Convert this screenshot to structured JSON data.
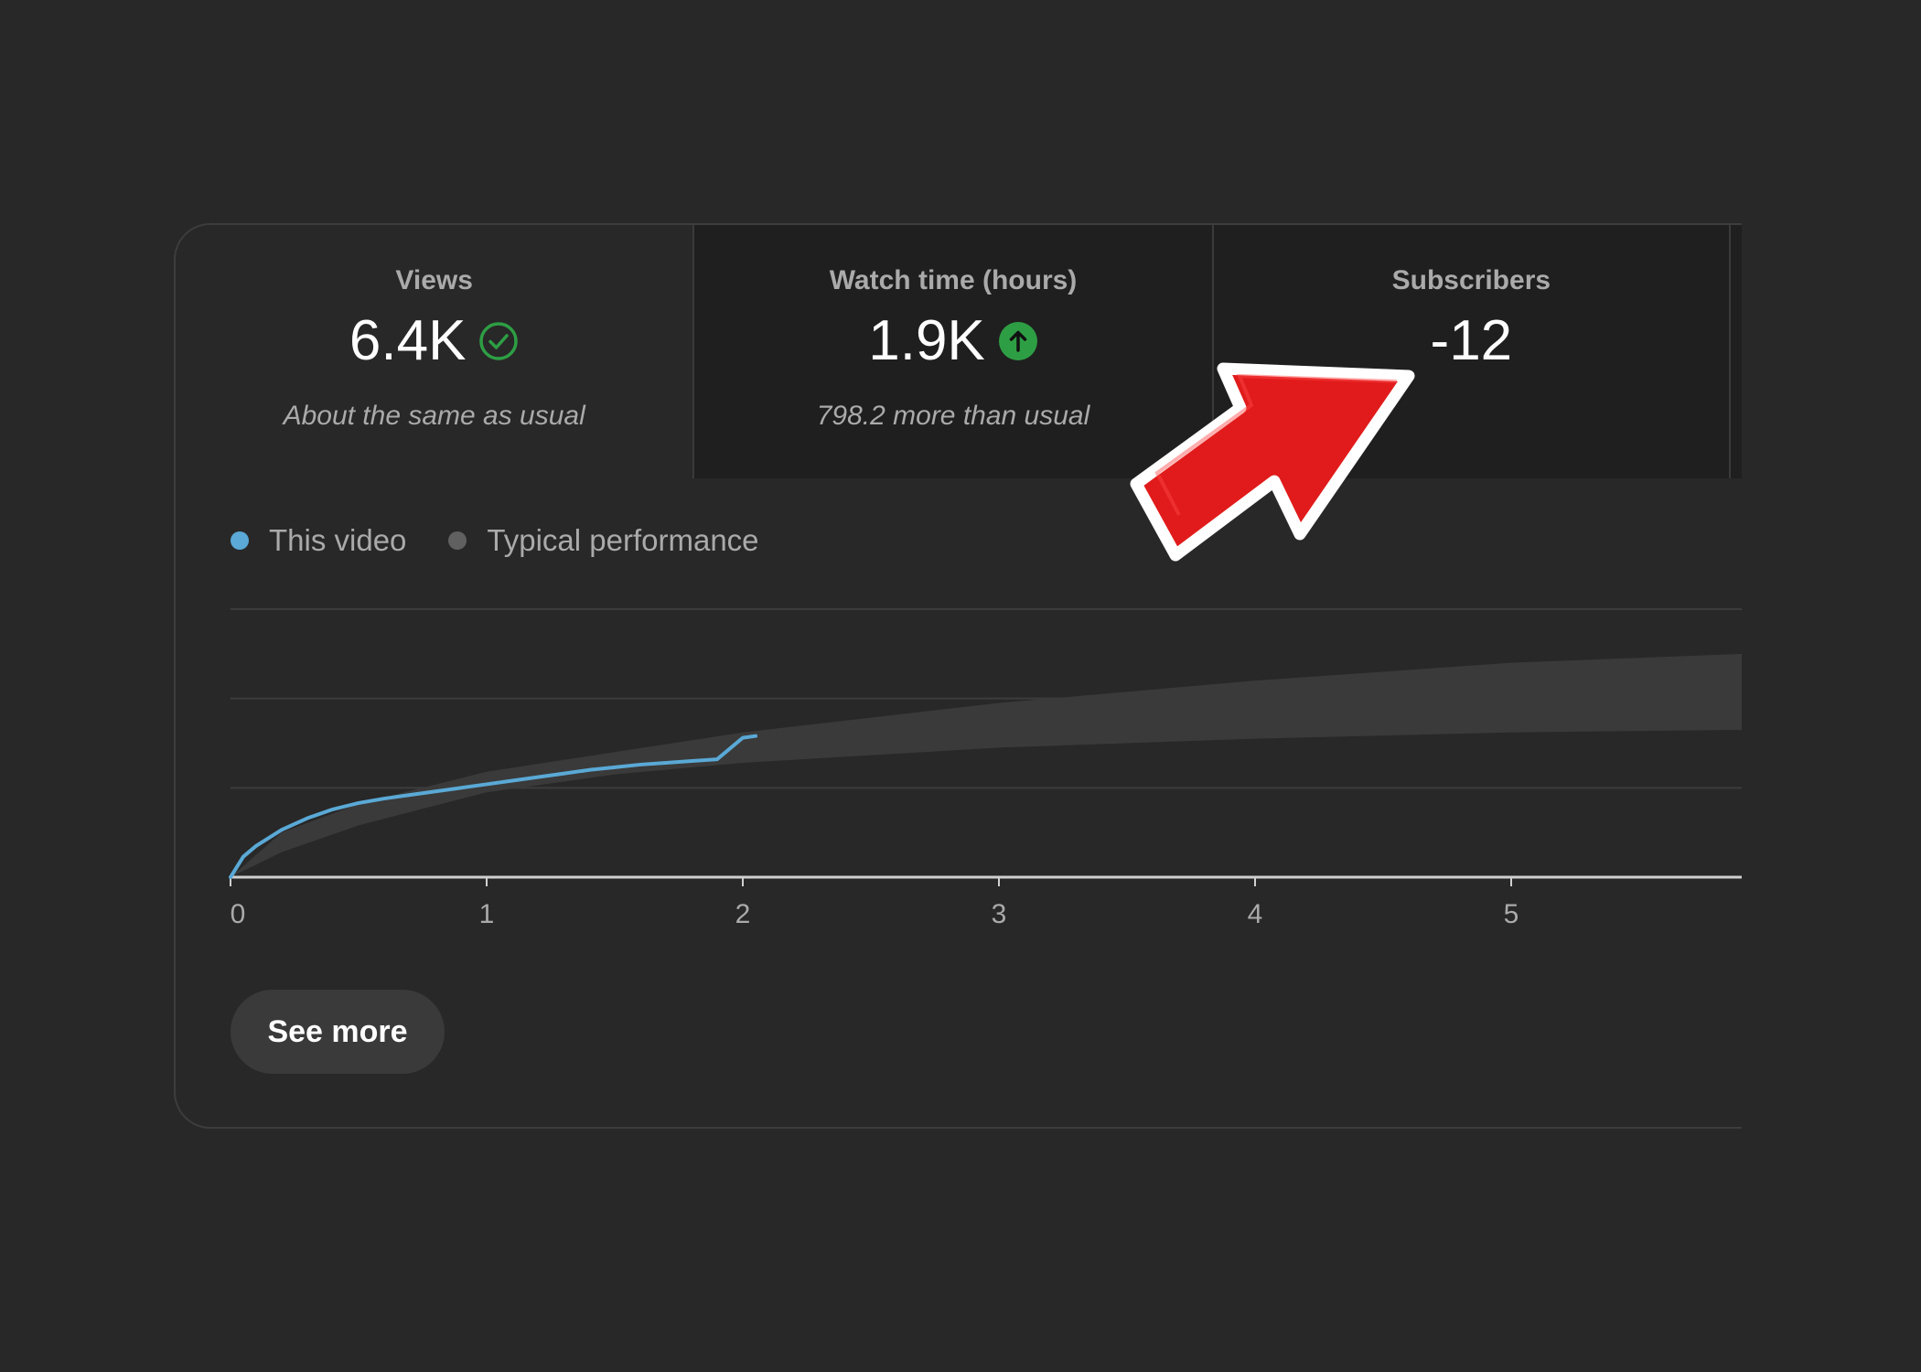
{
  "tabs": [
    {
      "title": "Views",
      "value": "6.4K",
      "note": "About the same as usual",
      "icon": "check-circle-icon"
    },
    {
      "title": "Watch time (hours)",
      "value": "1.9K",
      "note": "798.2 more than usual",
      "icon": "arrow-up-circle-icon"
    },
    {
      "title": "Subscribers",
      "value": "-12",
      "note": ""
    }
  ],
  "legend": {
    "this_video": "This video",
    "typical": "Typical performance"
  },
  "colors": {
    "this_video": "#5aa9d6",
    "typical_dot": "#606060",
    "typical_band": "#3a3a3a",
    "positive": "#2e9e44",
    "annotation_arrow": "#e11b1b"
  },
  "chart_data": {
    "type": "area",
    "x_ticks": [
      "0",
      "1",
      "2",
      "3",
      "4",
      "5"
    ],
    "xlim": [
      0,
      5.9
    ],
    "ylim": [
      0,
      3
    ],
    "grid": true,
    "series": [
      {
        "name": "This video",
        "x": [
          0,
          0.05,
          0.1,
          0.2,
          0.3,
          0.4,
          0.5,
          0.6,
          0.7,
          0.8,
          0.9,
          1.0,
          1.1,
          1.2,
          1.3,
          1.4,
          1.5,
          1.6,
          1.7,
          1.8,
          1.9,
          2.0,
          2.05
        ],
        "y": [
          0,
          0.23,
          0.35,
          0.53,
          0.66,
          0.76,
          0.83,
          0.88,
          0.92,
          0.96,
          1.0,
          1.04,
          1.08,
          1.12,
          1.16,
          1.2,
          1.23,
          1.26,
          1.28,
          1.3,
          1.32,
          1.56,
          1.58
        ]
      },
      {
        "name": "Typical performance",
        "x": [
          0,
          0.2,
          0.5,
          1.0,
          1.5,
          2.0,
          3.0,
          4.0,
          5.0,
          5.9
        ],
        "low": [
          0,
          0.28,
          0.58,
          0.95,
          1.15,
          1.28,
          1.45,
          1.55,
          1.62,
          1.65
        ],
        "high": [
          0,
          0.5,
          0.82,
          1.18,
          1.4,
          1.62,
          1.95,
          2.2,
          2.4,
          2.5
        ]
      }
    ]
  },
  "button": {
    "see_more": "See more"
  }
}
